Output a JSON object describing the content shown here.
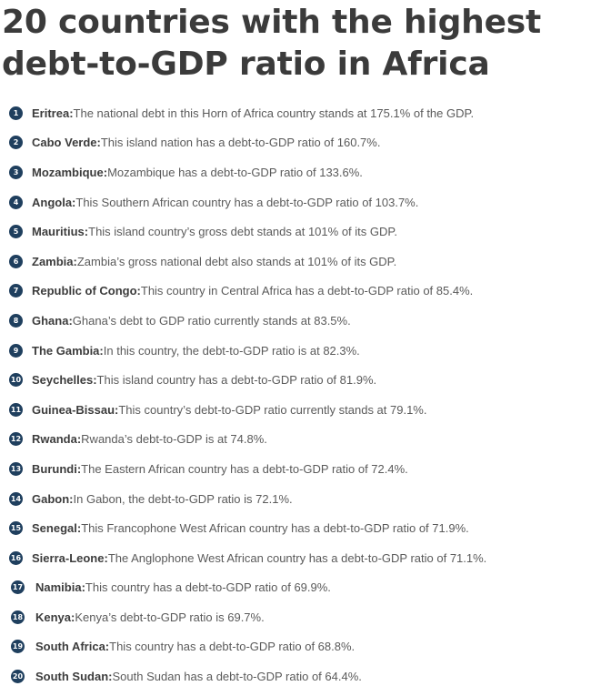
{
  "title": {
    "line1": "20 countries with the highest",
    "line2": "debt-to-GDP ratio in Africa"
  },
  "items": [
    {
      "num": "1",
      "country": "Eritrea:",
      "text": " The national debt in this Horn of Africa country stands at 175.1% of the GDP."
    },
    {
      "num": "2",
      "country": "Cabo Verde:",
      "text": " This island nation has a debt-to-GDP ratio of 160.7%."
    },
    {
      "num": "3",
      "country": "Mozambique:",
      "text": " Mozambique has a debt-to-GDP ratio of 133.6%."
    },
    {
      "num": "4",
      "country": "Angola:",
      "text": " This Southern African country has a debt-to-GDP ratio of 103.7%."
    },
    {
      "num": "5",
      "country": "Mauritius:",
      "text": " This island country’s gross debt stands at 101% of its GDP."
    },
    {
      "num": "6",
      "country": "Zambia:",
      "text": " Zambia’s gross national debt also stands at 101% of its GDP."
    },
    {
      "num": "7",
      "country": "Republic of Congo:",
      "text": " This country in Central Africa has a debt-to-GDP ratio of 85.4%."
    },
    {
      "num": "8",
      "country": "Ghana:",
      "text": " Ghana’s debt to GDP ratio currently stands at 83.5%."
    },
    {
      "num": "9",
      "country": "The Gambia:",
      "text": " In this country, the debt-to-GDP ratio is at 82.3%."
    },
    {
      "num": "10",
      "country": "Seychelles:",
      "text": " This island country has a debt-to-GDP ratio of 81.9%."
    },
    {
      "num": "11",
      "country": "Guinea-Bissau:",
      "text": " This country’s debt-to-GDP ratio currently stands at 79.1%."
    },
    {
      "num": "12",
      "country": "Rwanda:",
      "text": " Rwanda’s debt-to-GDP is at 74.8%."
    },
    {
      "num": "13",
      "country": "Burundi:",
      "text": " The Eastern African country has a debt-to-GDP ratio of 72.4%."
    },
    {
      "num": "14",
      "country": "Gabon:",
      "text": " In Gabon, the debt-to-GDP ratio is 72.1%."
    },
    {
      "num": "15",
      "country": "Senegal:",
      "text": " This Francophone West African country has a debt-to-GDP ratio of 71.9%."
    },
    {
      "num": "16",
      "country": "Sierra-Leone:",
      "text": " The Anglophone West African country has a debt-to-GDP ratio of 71.1%."
    },
    {
      "num": "17",
      "country": "Namibia:",
      "text": " This country has a debt-to-GDP ratio of 69.9%."
    },
    {
      "num": "18",
      "country": "Kenya:",
      "text": " Kenya’s debt-to-GDP ratio is 69.7%."
    },
    {
      "num": "19",
      "country": "South Africa:",
      "text": " This country has a debt-to-GDP ratio of 68.8%."
    },
    {
      "num": "20",
      "country": "South Sudan:",
      "text": " South Sudan has a debt-to-GDP ratio of 64.4%."
    }
  ]
}
